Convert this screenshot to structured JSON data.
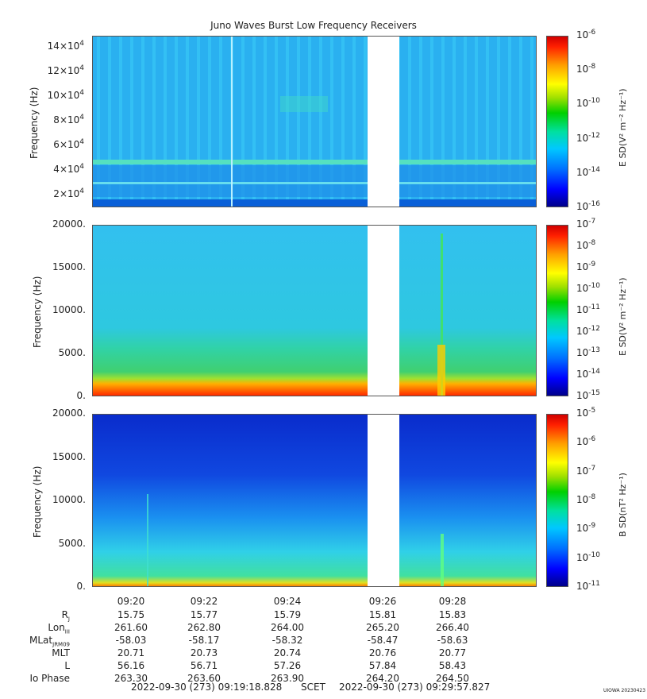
{
  "title": "Juno Waves Burst Low Frequency Receivers",
  "chart_data": [
    {
      "type": "heatmap",
      "panel": "E field high band",
      "ylabel": "Frequency (Hz)",
      "yticks": [
        "14×10^4",
        "12×10^4",
        "10×10^4",
        "8×10^4",
        "6×10^4",
        "4×10^4",
        "2×10^4"
      ],
      "ytick_base": "10",
      "ytick_mantissas": [
        "14",
        "12",
        "10",
        "8",
        "6",
        "4",
        "2"
      ],
      "ytick_exp": "4",
      "ylim": [
        10000,
        150000
      ],
      "colorbar_label": "E SD(V² m⁻² Hz⁻¹)",
      "colorbar_ticks": [
        "10",
        "10",
        "10",
        "10",
        "10",
        "10"
      ],
      "colorbar_exps": [
        "-6",
        "-8",
        "-10",
        "-12",
        "-14",
        "-16"
      ],
      "data_gap": [
        "09:26",
        "09:26:45"
      ]
    },
    {
      "type": "heatmap",
      "panel": "E field low band",
      "ylabel": "Frequency (Hz)",
      "yticks": [
        "20000.",
        "15000.",
        "10000.",
        "5000.",
        "0."
      ],
      "ylim": [
        0,
        20000
      ],
      "colorbar_label": "E SD(V² m⁻² Hz⁻¹)",
      "colorbar_ticks": [
        "10",
        "10",
        "10",
        "10",
        "10",
        "10",
        "10",
        "10",
        "10"
      ],
      "colorbar_exps": [
        "-7",
        "-8",
        "-9",
        "-10",
        "-11",
        "-12",
        "-13",
        "-14",
        "-15"
      ],
      "data_gap": [
        "09:26",
        "09:26:45"
      ]
    },
    {
      "type": "heatmap",
      "panel": "B field",
      "ylabel": "Frequency (Hz)",
      "yticks": [
        "20000.",
        "15000.",
        "10000.",
        "5000.",
        "0."
      ],
      "ylim": [
        0,
        20000
      ],
      "colorbar_label": "B SD(nT² Hz⁻¹)",
      "colorbar_ticks": [
        "10",
        "10",
        "10",
        "10",
        "10",
        "10",
        "10"
      ],
      "colorbar_exps": [
        "-5",
        "-6",
        "-7",
        "-8",
        "-9",
        "-10",
        "-11"
      ],
      "data_gap": [
        "09:26",
        "09:26:45"
      ]
    }
  ],
  "xaxis": {
    "ticks": [
      "09:20",
      "09:22",
      "09:24",
      "09:26",
      "09:28"
    ]
  },
  "ephemeris": {
    "rows": [
      {
        "label": "R",
        "sub": "J",
        "values": [
          "15.75",
          "15.77",
          "15.79",
          "15.81",
          "15.83"
        ]
      },
      {
        "label": "Lon",
        "sub": "III",
        "values": [
          "261.60",
          "262.80",
          "264.00",
          "265.20",
          "266.40"
        ]
      },
      {
        "label": "MLat",
        "sub": "JRM09",
        "values": [
          "-58.03",
          "-58.17",
          "-58.32",
          "-58.47",
          "-58.63"
        ]
      },
      {
        "label": "MLT",
        "sub": "",
        "values": [
          "20.71",
          "20.73",
          "20.74",
          "20.76",
          "20.77"
        ]
      },
      {
        "label": "L",
        "sub": "",
        "values": [
          "56.16",
          "56.71",
          "57.26",
          "57.84",
          "58.43"
        ]
      },
      {
        "label": "Io Phase",
        "sub": "",
        "values": [
          "263.30",
          "263.60",
          "263.90",
          "264.20",
          "264.50"
        ]
      }
    ]
  },
  "footer": {
    "start": "2022-09-30 (273) 09:19:18.828",
    "scet": "SCET",
    "end": "2022-09-30 (273) 09:29:57.827"
  },
  "credit": "UIOWA 20230423"
}
